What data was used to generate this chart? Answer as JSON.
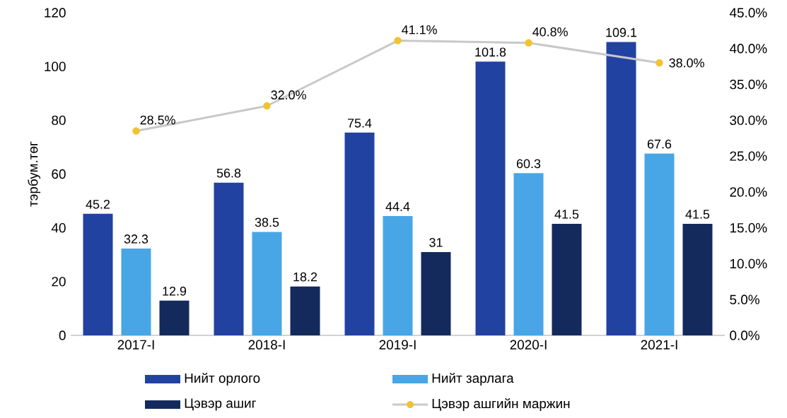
{
  "chart_data": {
    "type": "bar",
    "categories": [
      "2017-I",
      "2018-I",
      "2019-I",
      "2020-I",
      "2021-I"
    ],
    "ylabel": "тэрбум.төг",
    "series": [
      {
        "name": "Нийт орлого",
        "color": "#2142a0",
        "values": [
          45.2,
          56.8,
          75.4,
          101.8,
          109.1
        ]
      },
      {
        "name": "Нийт зарлага",
        "color": "#48a6e6",
        "values": [
          32.3,
          38.5,
          44.4,
          60.3,
          67.6
        ]
      },
      {
        "name": "Цэвэр ашиг",
        "color": "#142a5c",
        "values": [
          12.9,
          18.2,
          31,
          41.5,
          41.5
        ]
      },
      {
        "name": "Цэвэр ашгийн маржин",
        "type": "line",
        "axis": "y2",
        "color": "#c8c8c8",
        "marker": "circle",
        "colors": [
          "#f2c230",
          "#f2c230",
          "#f2c230",
          "#f2c230",
          "#f2c230"
        ],
        "values": [
          28.5,
          32.0,
          41.1,
          40.8,
          38.0
        ],
        "value_labels": [
          "28.5%",
          "32.0%",
          "41.1%",
          "40.8%",
          "38.0%"
        ]
      }
    ],
    "ylim": [
      0,
      120
    ],
    "yticks": [
      0,
      20,
      40,
      60,
      80,
      100,
      120
    ],
    "y2lim": [
      0,
      45
    ],
    "y2ticks": [
      {
        "value": 0,
        "label": "0.0%"
      },
      {
        "value": 5,
        "label": "5.0%"
      },
      {
        "value": 10,
        "label": "10.0%"
      },
      {
        "value": 15,
        "label": "15.0%"
      },
      {
        "value": 20,
        "label": "20.0%"
      },
      {
        "value": 25,
        "label": "25.0%"
      },
      {
        "value": 30,
        "label": "30.0%"
      },
      {
        "value": 35,
        "label": "35.0%"
      },
      {
        "value": 40,
        "label": "40.0%"
      },
      {
        "value": 45,
        "label": "45.0%"
      }
    ],
    "data_labels": true,
    "legend": "bottom",
    "grid": false
  }
}
